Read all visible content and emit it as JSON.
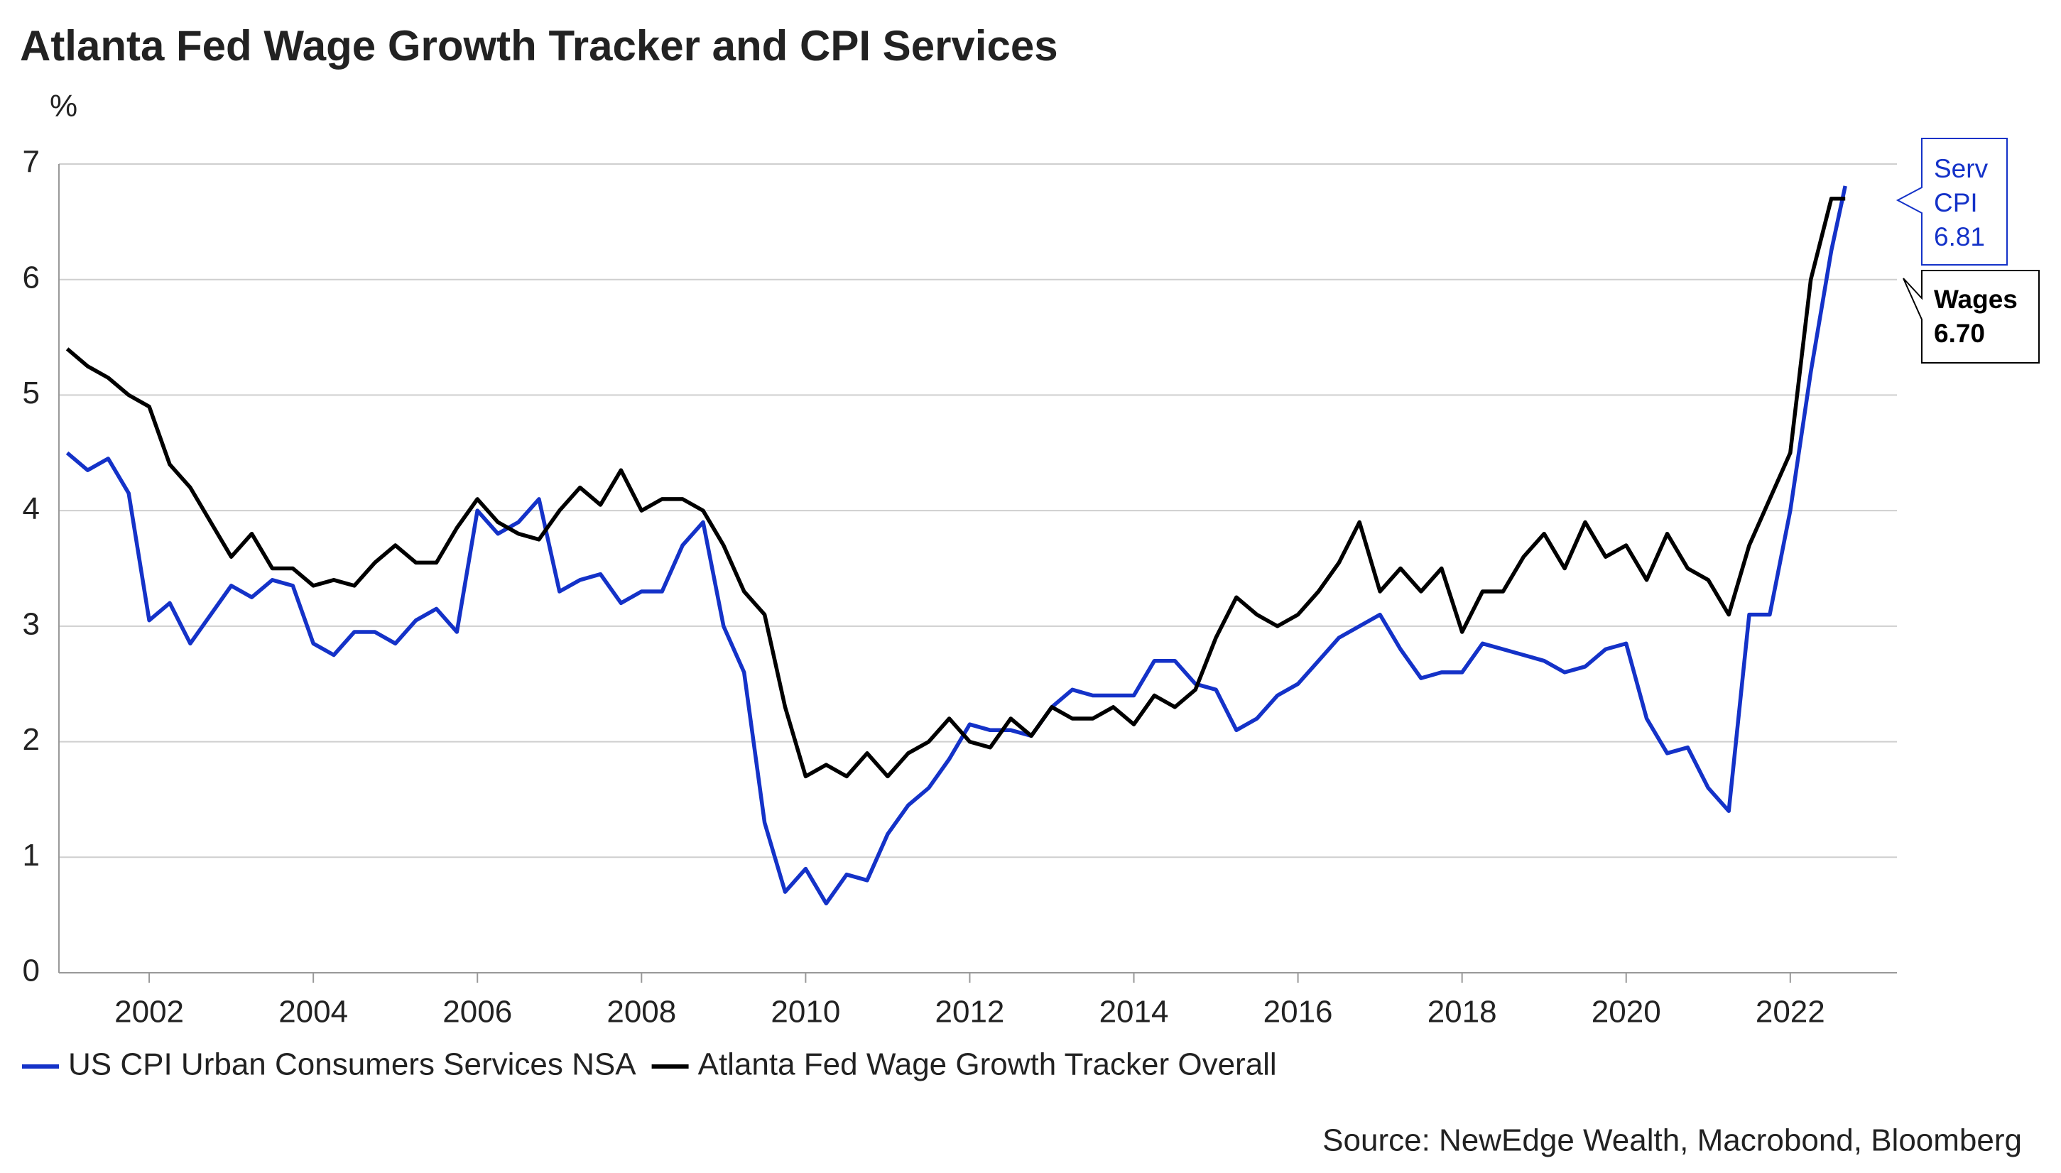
{
  "chart_data": {
    "type": "line",
    "title": "Atlanta Fed Wage Growth Tracker and CPI Services",
    "y_label": "%",
    "source": "Source: NewEdge Wealth, Macrobond, Bloomberg",
    "xlim": [
      2000.9,
      2023.3
    ],
    "xticks": [
      2002,
      2004,
      2006,
      2008,
      2010,
      2012,
      2014,
      2016,
      2018,
      2020,
      2022
    ],
    "ylim": [
      0,
      7
    ],
    "yticks": [
      0,
      1,
      2,
      3,
      4,
      5,
      6,
      7
    ],
    "grid": true,
    "legend": "bottom",
    "x": [
      2001,
      2001.25,
      2001.5,
      2001.75,
      2002,
      2002.25,
      2002.5,
      2002.75,
      2003,
      2003.25,
      2003.5,
      2003.75,
      2004,
      2004.25,
      2004.5,
      2004.75,
      2005,
      2005.25,
      2005.5,
      2005.75,
      2006,
      2006.25,
      2006.5,
      2006.75,
      2007,
      2007.25,
      2007.5,
      2007.75,
      2008,
      2008.25,
      2008.5,
      2008.75,
      2009,
      2009.25,
      2009.5,
      2009.75,
      2010,
      2010.25,
      2010.5,
      2010.75,
      2011,
      2011.25,
      2011.5,
      2011.75,
      2012,
      2012.25,
      2012.5,
      2012.75,
      2013,
      2013.25,
      2013.5,
      2013.75,
      2014,
      2014.25,
      2014.5,
      2014.75,
      2015,
      2015.25,
      2015.5,
      2015.75,
      2016,
      2016.25,
      2016.5,
      2016.75,
      2017,
      2017.25,
      2017.5,
      2017.75,
      2018,
      2018.25,
      2018.5,
      2018.75,
      2019,
      2019.25,
      2019.5,
      2019.75,
      2020,
      2020.25,
      2020.5,
      2020.75,
      2021,
      2021.25,
      2021.5,
      2021.75,
      2022,
      2022.25,
      2022.5,
      2022.67
    ],
    "series": [
      {
        "name": "US CPI Urban Consumers Services NSA",
        "color": "#1432c8",
        "values": [
          4.5,
          4.35,
          4.45,
          4.15,
          3.05,
          3.2,
          2.85,
          3.1,
          3.35,
          3.25,
          3.4,
          3.35,
          2.85,
          2.75,
          2.95,
          2.95,
          2.85,
          3.05,
          3.15,
          2.95,
          4.0,
          3.8,
          3.9,
          4.1,
          3.3,
          3.4,
          3.45,
          3.2,
          3.3,
          3.3,
          3.7,
          3.9,
          3.0,
          2.6,
          1.3,
          0.7,
          0.9,
          0.6,
          0.85,
          0.8,
          1.2,
          1.45,
          1.6,
          1.85,
          2.15,
          2.1,
          2.1,
          2.05,
          2.3,
          2.45,
          2.4,
          2.4,
          2.4,
          2.7,
          2.7,
          2.5,
          2.45,
          2.1,
          2.2,
          2.4,
          2.5,
          2.7,
          2.9,
          3.0,
          3.1,
          2.8,
          2.55,
          2.6,
          2.6,
          2.85,
          2.8,
          2.75,
          2.7,
          2.6,
          2.65,
          2.8,
          2.85,
          2.2,
          1.9,
          1.95,
          1.6,
          1.4,
          3.1,
          3.1,
          4.0,
          5.2,
          6.25,
          6.81
        ]
      },
      {
        "name": "Atlanta Fed Wage Growth Tracker Overall",
        "color": "#000000",
        "values": [
          5.4,
          5.25,
          5.15,
          5.0,
          4.9,
          4.4,
          4.2,
          3.9,
          3.6,
          3.8,
          3.5,
          3.5,
          3.35,
          3.4,
          3.35,
          3.55,
          3.7,
          3.55,
          3.55,
          3.85,
          4.1,
          3.9,
          3.8,
          3.75,
          4.0,
          4.2,
          4.05,
          4.35,
          4.0,
          4.1,
          4.1,
          4.0,
          3.7,
          3.3,
          3.1,
          2.3,
          1.7,
          1.8,
          1.7,
          1.9,
          1.7,
          1.9,
          2.0,
          2.2,
          2.0,
          1.95,
          2.2,
          2.05,
          2.3,
          2.2,
          2.2,
          2.3,
          2.15,
          2.4,
          2.3,
          2.45,
          2.9,
          3.25,
          3.1,
          3.0,
          3.1,
          3.3,
          3.55,
          3.9,
          3.3,
          3.5,
          3.3,
          3.5,
          2.95,
          3.3,
          3.3,
          3.6,
          3.8,
          3.5,
          3.9,
          3.6,
          3.7,
          3.4,
          3.8,
          3.5,
          3.4,
          3.1,
          3.7,
          4.1,
          4.5,
          6.0,
          6.7,
          6.7
        ]
      }
    ],
    "annotations": [
      {
        "lines": [
          "Serv",
          "CPI",
          "6.81"
        ],
        "color": "#1432c8"
      },
      {
        "lines": [
          "Wages",
          "6.70"
        ],
        "color": "#000000"
      }
    ]
  }
}
